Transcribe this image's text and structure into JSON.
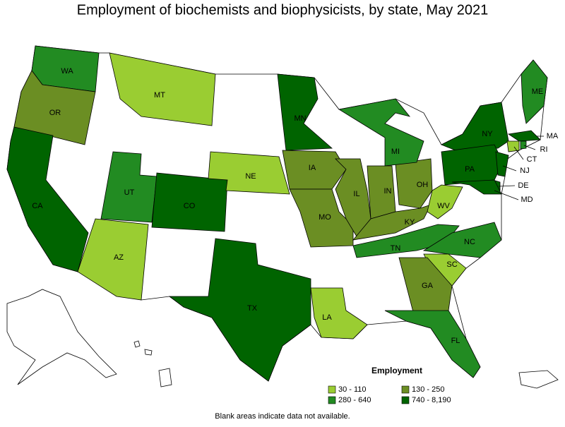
{
  "title": "Employment of biochemists and biophysicists, by state, May 2021",
  "legend": {
    "title": "Employment",
    "bins": [
      {
        "label": "30 - 110",
        "color": "#9acd32"
      },
      {
        "label": "130 - 250",
        "color": "#6b8e23"
      },
      {
        "label": "280 - 640",
        "color": "#228b22"
      },
      {
        "label": "740 - 8,190",
        "color": "#006400"
      }
    ]
  },
  "states": [
    {
      "name": "WA",
      "color": "#228b22"
    },
    {
      "name": "OR",
      "color": "#6b8e23"
    },
    {
      "name": "CA",
      "color": "#006400"
    },
    {
      "name": "MT",
      "color": "#9acd32"
    },
    {
      "name": "UT",
      "color": "#228b22"
    },
    {
      "name": "CO",
      "color": "#006400"
    },
    {
      "name": "AZ",
      "color": "#9acd32"
    },
    {
      "name": "NE",
      "color": "#9acd32"
    },
    {
      "name": "TX",
      "color": "#006400"
    },
    {
      "name": "MN",
      "color": "#006400"
    },
    {
      "name": "IA",
      "color": "#6b8e23"
    },
    {
      "name": "MO",
      "color": "#6b8e23"
    },
    {
      "name": "IL",
      "color": "#6b8e23"
    },
    {
      "name": "IN",
      "color": "#6b8e23"
    },
    {
      "name": "OH",
      "color": "#6b8e23"
    },
    {
      "name": "KY",
      "color": "#6b8e23"
    },
    {
      "name": "WV",
      "color": "#9acd32"
    },
    {
      "name": "TN",
      "color": "#228b22"
    },
    {
      "name": "NC",
      "color": "#228b22"
    },
    {
      "name": "SC",
      "color": "#9acd32"
    },
    {
      "name": "GA",
      "color": "#6b8e23"
    },
    {
      "name": "FL",
      "color": "#228b22"
    },
    {
      "name": "LA",
      "color": "#9acd32"
    },
    {
      "name": "MI",
      "color": "#228b22"
    },
    {
      "name": "NY",
      "color": "#006400"
    },
    {
      "name": "PA",
      "color": "#006400"
    },
    {
      "name": "NJ",
      "color": "#006400"
    },
    {
      "name": "DE",
      "color": "#006400"
    },
    {
      "name": "MD",
      "color": "#006400"
    },
    {
      "name": "MA",
      "color": "#006400"
    },
    {
      "name": "CT",
      "color": "#9acd32"
    },
    {
      "name": "RI",
      "color": "#228b22"
    },
    {
      "name": "ME",
      "color": "#228b22"
    }
  ],
  "footnote": "Blank areas indicate data not available."
}
